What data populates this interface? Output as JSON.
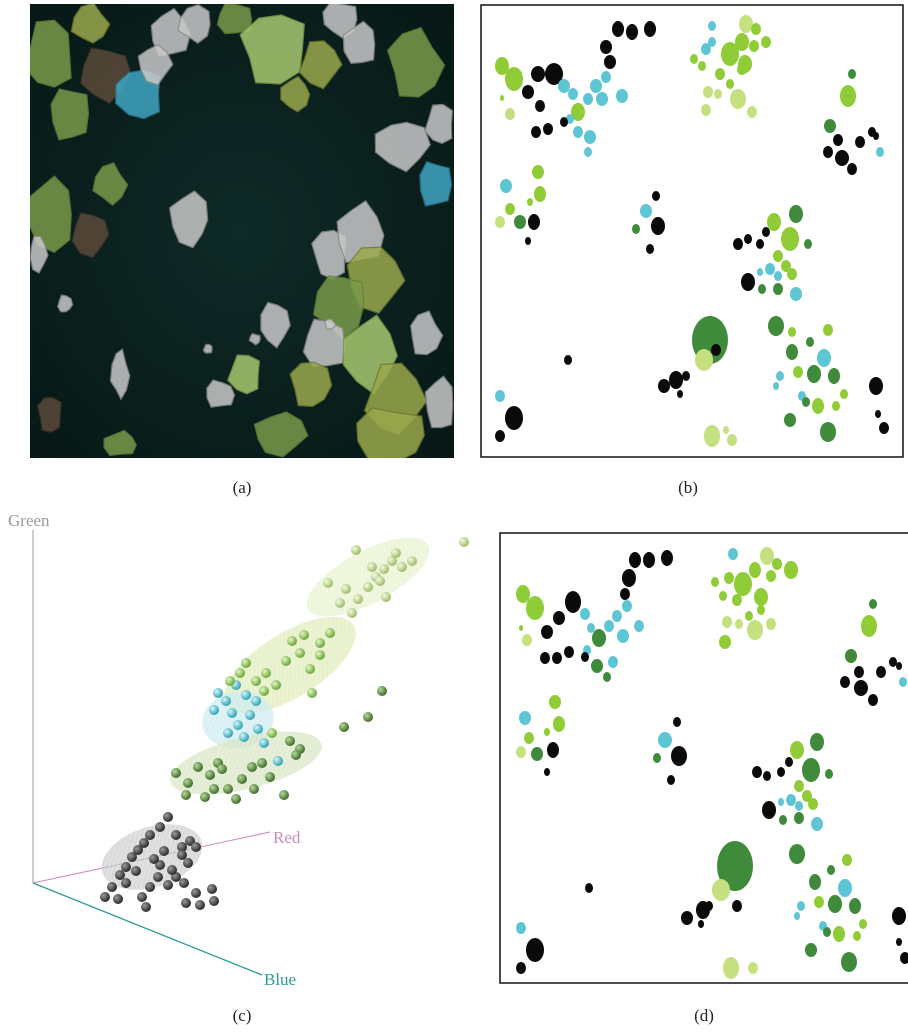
{
  "captions": {
    "a": "(a)",
    "b": "(b)",
    "c": "(c)",
    "d": "(d)"
  },
  "axes": {
    "green": "Green",
    "red": "Red",
    "blue": "Blue"
  },
  "colors": {
    "black": "#0a0a0a",
    "lime": "#8fcc36",
    "pale": "#c5e07e",
    "dark": "#3f8a3b",
    "cyan": "#5ec5d4",
    "red_axis": "#c98ac0",
    "blue_axis": "#2a9a96",
    "green_axis": "#999999"
  }
}
